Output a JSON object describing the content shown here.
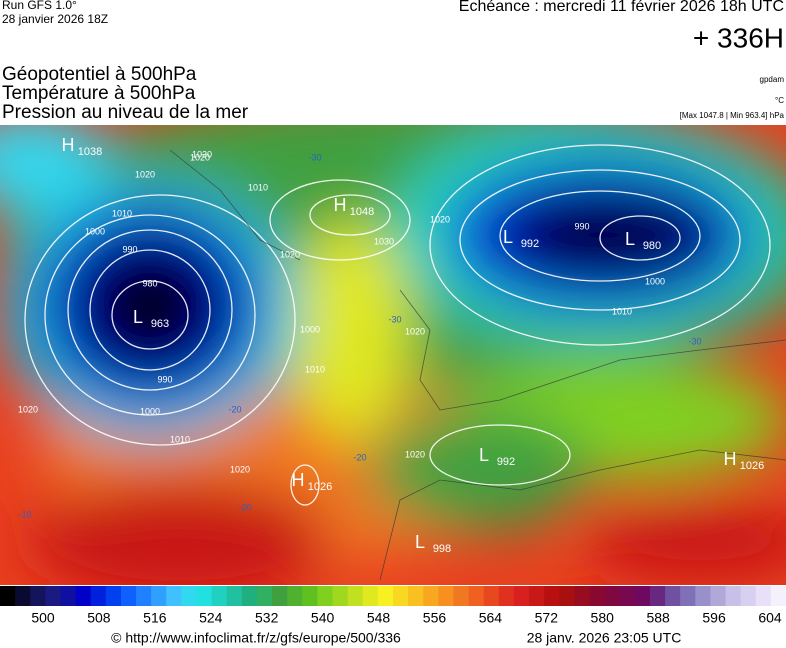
{
  "header": {
    "run": "Run GFS 1.0°",
    "run_date": "28 janvier 2026 18Z",
    "forecast": "Echéance : mercredi 11 février 2026 18h UTC",
    "lead": "+ 336H",
    "titles": [
      "Géopotentiel à 500hPa",
      "Température à 500hPa",
      "Pression au niveau de la mer"
    ],
    "units": [
      "gpdam",
      "°C",
      "[Max 1047.8 | Min 963.4] hPa"
    ]
  },
  "centers": [
    {
      "type": "H",
      "value": "1038"
    },
    {
      "type": "H",
      "value": "1048"
    },
    {
      "type": "L",
      "value": "963"
    },
    {
      "type": "L",
      "value": "992"
    },
    {
      "type": "L",
      "value": "980"
    },
    {
      "type": "H",
      "value": "1026"
    },
    {
      "type": "L",
      "value": "992"
    },
    {
      "type": "H",
      "value": "1026"
    },
    {
      "type": "L",
      "value": "998"
    }
  ],
  "isobar_labels": [
    "1020",
    "1010",
    "1000",
    "990",
    "980",
    "990",
    "1000",
    "1010",
    "1020",
    "1020",
    "1030",
    "1020",
    "990",
    "1000",
    "1010",
    "1020",
    "1010",
    "1020",
    "1020",
    "1010",
    "1000",
    "1020",
    "1030"
  ],
  "temperature_labels": [
    "-30",
    "-20",
    "-20",
    "-30",
    "-10",
    "-20",
    "-30"
  ],
  "colorbar": {
    "ticks": [
      500,
      508,
      516,
      524,
      532,
      540,
      548,
      556,
      564,
      572,
      580,
      588,
      596,
      604
    ],
    "colors": [
      "#000000",
      "#0a0a30",
      "#14145a",
      "#1a1a80",
      "#1010a0",
      "#0000c8",
      "#0020e0",
      "#0040f0",
      "#1060ff",
      "#2080ff",
      "#30a0ff",
      "#40c0ff",
      "#30d8f0",
      "#20e0e0",
      "#20d0c0",
      "#20c0a0",
      "#20b080",
      "#30b060",
      "#40a040",
      "#50b030",
      "#60c020",
      "#80d020",
      "#a0d820",
      "#c0e020",
      "#e0e820",
      "#f8f020",
      "#f8d820",
      "#f8c020",
      "#f8a820",
      "#f89020",
      "#f07820",
      "#f06020",
      "#e84820",
      "#e03020",
      "#d82020",
      "#c81818",
      "#b81010",
      "#a81010",
      "#980c20",
      "#880830",
      "#800840",
      "#780850",
      "#700860",
      "#682880",
      "#7050a0",
      "#8070b8",
      "#9890c8",
      "#b0a8d8",
      "#c8c0e8",
      "#d8d0f0",
      "#e8e0f8",
      "#f4f0fc"
    ]
  },
  "footer": {
    "source": "© http://www.infoclimat.fr/z/gfs/europe/500/336",
    "generated": "28 janv. 2026 23:05 UTC"
  }
}
